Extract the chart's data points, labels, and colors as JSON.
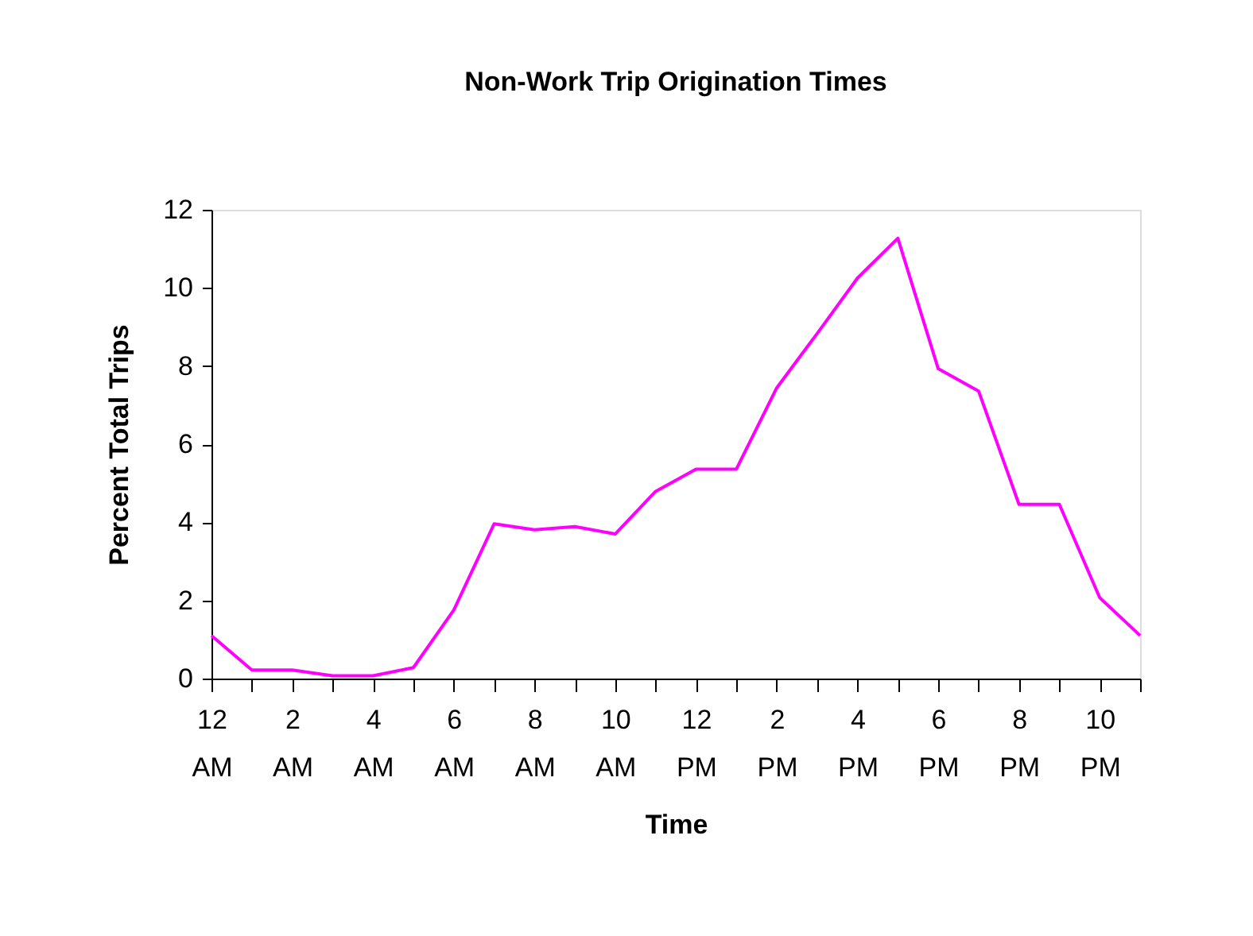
{
  "chart_data": {
    "type": "line",
    "title": "Non-Work Trip Origination Times",
    "xlabel": "Time",
    "ylabel": "Percent Total Trips",
    "categories": [
      "12\nAM",
      null,
      "2\nAM",
      null,
      "4\nAM",
      null,
      "6\nAM",
      null,
      "8\nAM",
      null,
      "10\nAM",
      null,
      "12\nPM",
      null,
      "2\nPM",
      null,
      "4\nPM",
      null,
      "6\nPM",
      null,
      "8\nPM",
      null,
      "10\nPM",
      null
    ],
    "series": [
      {
        "color": "#ff00ff",
        "values": [
          1.1,
          0.22,
          0.22,
          0.07,
          0.07,
          0.28,
          1.75,
          3.96,
          3.81,
          3.89,
          3.7,
          4.79,
          5.36,
          5.36,
          7.44,
          8.83,
          10.25,
          11.27,
          7.93,
          7.36,
          4.46,
          4.46,
          2.07,
          1.1
        ]
      }
    ],
    "ylim": [
      0,
      12
    ],
    "yticks": [
      0,
      2,
      4,
      6,
      8,
      10,
      12
    ],
    "grid": false
  }
}
